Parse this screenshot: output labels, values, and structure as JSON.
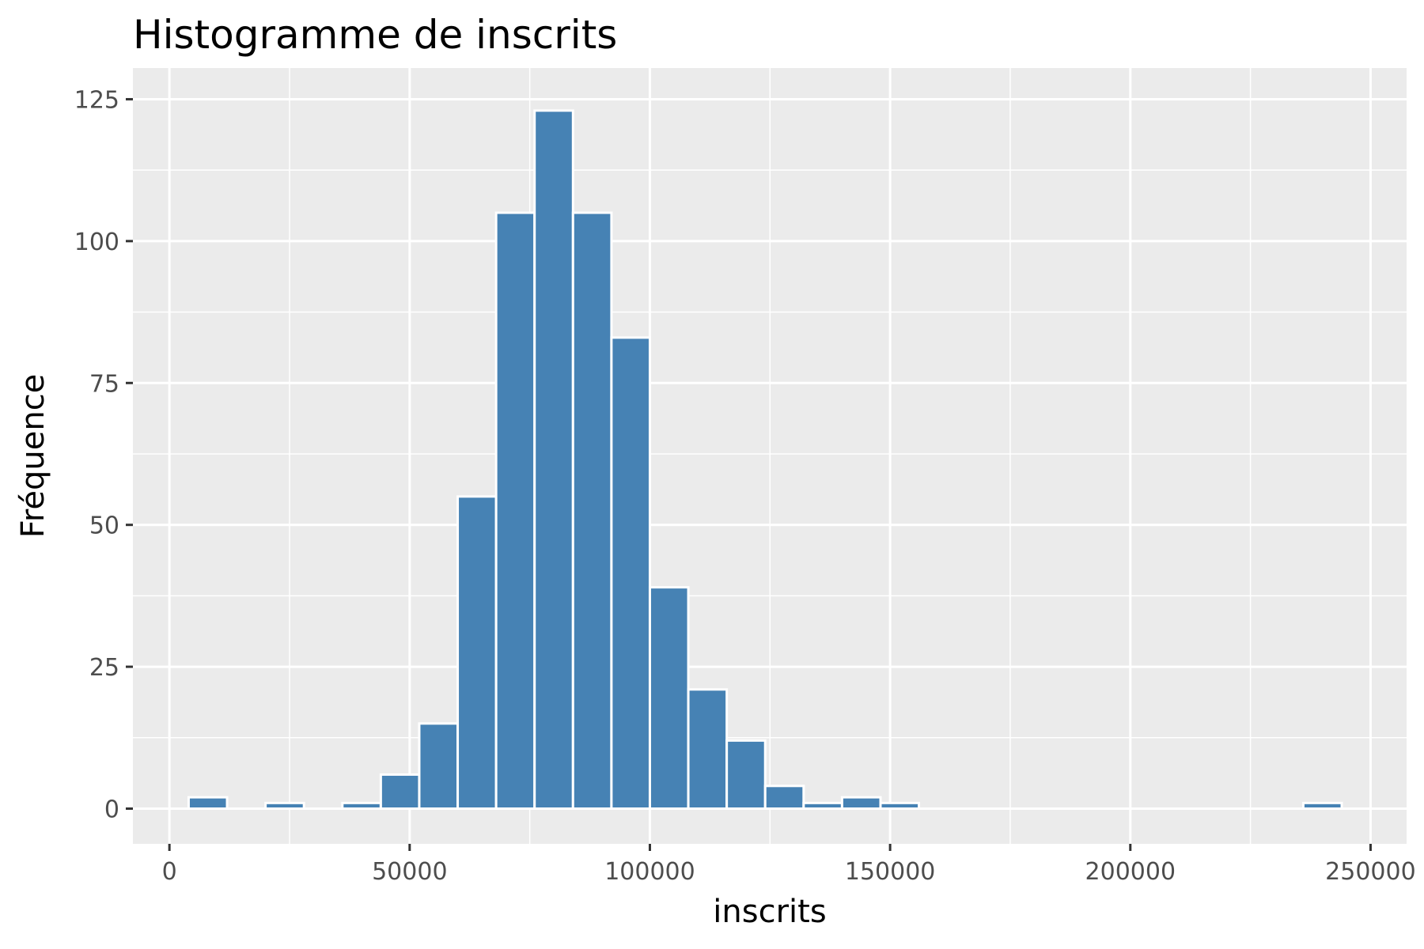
{
  "chart_data": {
    "type": "bar",
    "title": "Histogramme de inscrits",
    "xlabel": "inscrits",
    "ylabel": "Fréquence",
    "xlim": [
      -7600,
      257500
    ],
    "ylim": [
      -6.2,
      130.5
    ],
    "x_ticks": [
      0,
      50000,
      100000,
      150000,
      200000,
      250000
    ],
    "x_tick_labels": [
      "0",
      "50000",
      "100000",
      "150000",
      "200000",
      "250000"
    ],
    "y_ticks": [
      0,
      25,
      50,
      75,
      100,
      125
    ],
    "y_tick_labels": [
      "0",
      "25",
      "50",
      "75",
      "100",
      "125"
    ],
    "bin_width": 8000,
    "bins": [
      {
        "x0": 4000,
        "x1": 12000,
        "count": 2
      },
      {
        "x0": 20000,
        "x1": 28000,
        "count": 1
      },
      {
        "x0": 36000,
        "x1": 44000,
        "count": 1
      },
      {
        "x0": 44000,
        "x1": 52000,
        "count": 6
      },
      {
        "x0": 52000,
        "x1": 60000,
        "count": 15
      },
      {
        "x0": 60000,
        "x1": 68000,
        "count": 55
      },
      {
        "x0": 68000,
        "x1": 76000,
        "count": 105
      },
      {
        "x0": 76000,
        "x1": 84000,
        "count": 123
      },
      {
        "x0": 84000,
        "x1": 92000,
        "count": 105
      },
      {
        "x0": 92000,
        "x1": 100000,
        "count": 83
      },
      {
        "x0": 100000,
        "x1": 108000,
        "count": 39
      },
      {
        "x0": 108000,
        "x1": 116000,
        "count": 21
      },
      {
        "x0": 116000,
        "x1": 124000,
        "count": 12
      },
      {
        "x0": 124000,
        "x1": 132000,
        "count": 4
      },
      {
        "x0": 132000,
        "x1": 140000,
        "count": 1
      },
      {
        "x0": 140000,
        "x1": 148000,
        "count": 2
      },
      {
        "x0": 148000,
        "x1": 156000,
        "count": 1
      },
      {
        "x0": 236000,
        "x1": 244000,
        "count": 1
      }
    ],
    "colors": {
      "bar_fill": "#4682b4",
      "bar_outline": "#ffffff",
      "panel_background": "#ebebeb",
      "grid": "#ffffff",
      "tick_text": "#4d4d4d",
      "tick_mark": "#333333"
    },
    "grid": true,
    "legend": "none"
  }
}
